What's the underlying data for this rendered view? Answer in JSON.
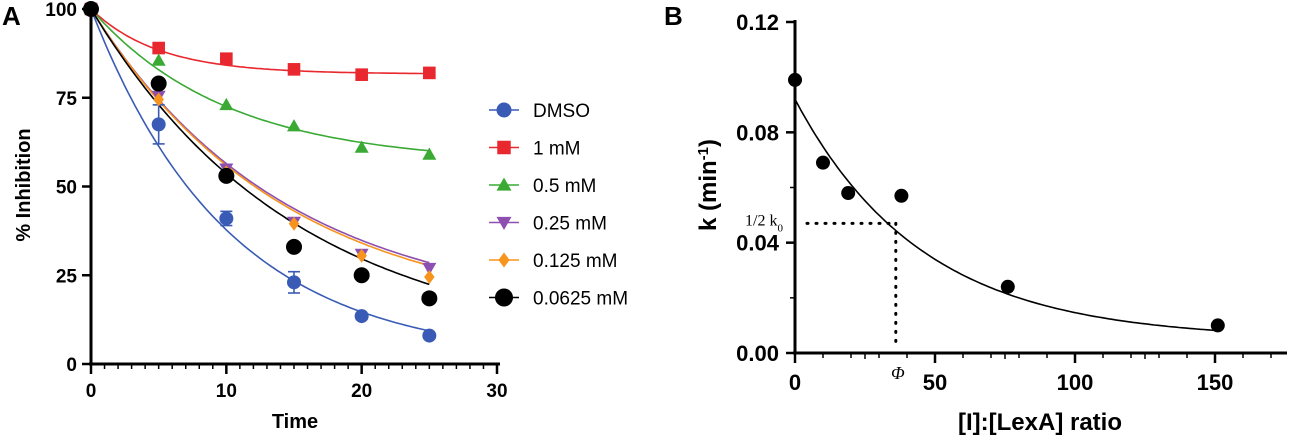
{
  "figure": {
    "label_a": "A",
    "label_b": "B"
  },
  "chart_data": [
    {
      "type": "scatter",
      "panel": "A",
      "title": "",
      "xlabel": "Time",
      "ylabel": "% Inhibition",
      "xlim": [
        0,
        30
      ],
      "ylim": [
        0,
        100
      ],
      "xticks": [
        0,
        10,
        20,
        30
      ],
      "yticks": [
        0,
        25,
        50,
        75,
        100
      ],
      "grid": false,
      "legend_position": "right",
      "x": [
        0,
        5,
        10,
        15,
        20,
        25
      ],
      "series": [
        {
          "name": "DMSO",
          "marker": "circle",
          "color": "#3a5bb5",
          "values": [
            100,
            67.5,
            41,
            23,
            13.5,
            8
          ],
          "fit_plateau": 1.0,
          "fit_k": 0.099,
          "error_bars": [
            0,
            5.5,
            2,
            3,
            0,
            0
          ]
        },
        {
          "name": "1 mM",
          "marker": "square",
          "color": "#e8282e",
          "values": [
            100,
            89,
            86,
            83,
            81.5,
            82
          ],
          "fit_plateau": 81.7,
          "fit_k": 0.2,
          "error_bars": [
            0,
            0,
            0,
            0,
            0,
            0
          ]
        },
        {
          "name": "0.5 mM",
          "marker": "triangle-up",
          "color": "#3aaa35",
          "values": [
            100,
            85.5,
            73,
            67,
            61,
            59
          ],
          "fit_plateau": 56.5,
          "fit_k": 0.1,
          "error_bars": [
            0,
            0,
            0,
            0,
            0,
            0
          ]
        },
        {
          "name": "0.25 mM",
          "marker": "triangle-down",
          "color": "#8d4fb0",
          "values": [
            100,
            75.5,
            55,
            40,
            31,
            27
          ],
          "fit_plateau": 13.5,
          "fit_k": 0.07,
          "error_bars": [
            0,
            0,
            0,
            0,
            0,
            0
          ]
        },
        {
          "name": "0.125 mM",
          "marker": "diamond",
          "color": "#f7941d",
          "values": [
            100,
            74.5,
            54,
            39.5,
            30.5,
            24.5
          ],
          "fit_plateau": 12.5,
          "fit_k": 0.07,
          "error_bars": [
            0,
            0,
            0,
            0,
            0,
            0
          ]
        },
        {
          "name": "0.0625 mM",
          "marker": "circle",
          "color": "#000000",
          "values": [
            100,
            79,
            53,
            33,
            25,
            18.5
          ],
          "fit_plateau": 4.0,
          "fit_k": 0.066,
          "error_bars": [
            0,
            0,
            0,
            0,
            0,
            0
          ]
        }
      ]
    },
    {
      "type": "scatter",
      "panel": "B",
      "title": "",
      "xlabel": "[I]:[LexA] ratio",
      "ylabel": "k (min-1)",
      "ylabel_main": "k (min",
      "ylabel_sup": "-1",
      "ylabel_end": ")",
      "xlim": [
        0,
        175
      ],
      "ylim": [
        0,
        0.12
      ],
      "xticks": [
        0,
        50,
        100,
        150
      ],
      "yticks": [
        "0.00",
        "0.04",
        "0.08",
        "0.12"
      ],
      "grid": false,
      "x": [
        0,
        10,
        19,
        38,
        76,
        151
      ],
      "values": [
        0.099,
        0.069,
        0.058,
        0.057,
        0.024,
        0.01
      ],
      "fit": {
        "k0": 0.092,
        "kmin": 0.005,
        "rate": 0.022
      },
      "annotations": {
        "half_k0_label": "1/2 k",
        "half_k0_sub": "0",
        "half_k0_value": 0.047,
        "phi_label": "Φ",
        "phi_x": 36
      }
    }
  ]
}
